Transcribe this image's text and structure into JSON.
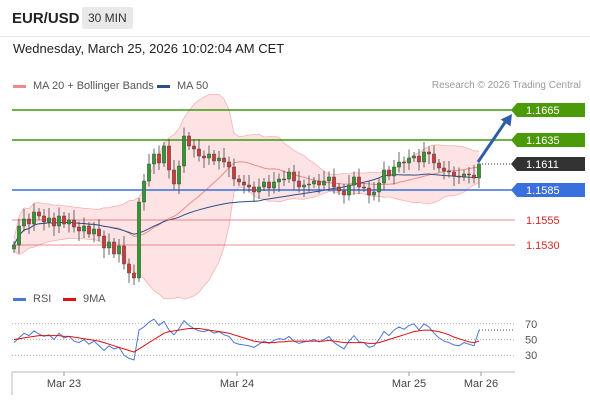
{
  "header": {
    "pair": "EUR/USD",
    "timeframe": "30 MIN"
  },
  "datetime": "Wednesday, March 25, 2026 10:02:04 AM CET",
  "legend": {
    "items": [
      {
        "label": "MA 20 + Bollinger Bands",
        "color": "#f08a8a"
      },
      {
        "label": "MA 50",
        "color": "#2b4f8a"
      }
    ]
  },
  "credit": "Research © 2026 Trading Central",
  "rsi_legend": {
    "items": [
      {
        "label": "RSI",
        "color": "#4a78d8"
      },
      {
        "label": "9MA",
        "color": "#dd1111"
      }
    ]
  },
  "chart_data": {
    "type": "candlestick",
    "instrument": "EUR/USD",
    "timeframe": "30 MIN",
    "x_tick_labels": [
      "Mar 23",
      "Mar 24",
      "Mar 25",
      "Mar 26"
    ],
    "current_price": "1.1611",
    "levels": [
      {
        "value": "1.1665",
        "kind": "resistance",
        "color": "#3d9a0a"
      },
      {
        "value": "1.1635",
        "kind": "resistance",
        "color": "#3d9a0a"
      },
      {
        "value": "1.1585",
        "kind": "pivot",
        "color": "#3a6fe0"
      },
      {
        "value": "1.1555",
        "kind": "support",
        "color": "#e06666"
      },
      {
        "value": "1.1530",
        "kind": "support",
        "color": "#e06666"
      }
    ],
    "price_range": [
      1.149,
      1.168
    ],
    "closes": [
      1.153,
      1.1549,
      1.1556,
      1.1551,
      1.1563,
      1.1559,
      1.1553,
      1.1557,
      1.1549,
      1.1559,
      1.1551,
      1.1555,
      1.1548,
      1.1544,
      1.1549,
      1.1541,
      1.1546,
      1.1539,
      1.1527,
      1.1533,
      1.1521,
      1.1529,
      1.1511,
      1.1502,
      1.1497,
      1.1573,
      1.1594,
      1.1611,
      1.1621,
      1.1612,
      1.1629,
      1.1605,
      1.1591,
      1.1609,
      1.1639,
      1.1629,
      1.1626,
      1.1619,
      1.1617,
      1.1621,
      1.1614,
      1.1617,
      1.1613,
      1.1608,
      1.1596,
      1.1593,
      1.159,
      1.1588,
      1.1583,
      1.1588,
      1.1593,
      1.1587,
      1.1593,
      1.1596,
      1.1596,
      1.1603,
      1.1594,
      1.1588,
      1.159,
      1.1591,
      1.1594,
      1.159,
      1.1594,
      1.1598,
      1.1588,
      1.1584,
      1.158,
      1.159,
      1.1598,
      1.1588,
      1.1587,
      1.158,
      1.1583,
      1.1592,
      1.1605,
      1.1599,
      1.1608,
      1.1613,
      1.1612,
      1.1617,
      1.1619,
      1.1613,
      1.1623,
      1.1621,
      1.1612,
      1.1607,
      1.1604,
      1.1603,
      1.1599,
      1.1598,
      1.1601,
      1.16,
      1.1597,
      1.1611
    ],
    "forecast": {
      "from": "1.1611",
      "to": "1.1665"
    },
    "rsi": {
      "levels": [
        70,
        50,
        30
      ],
      "series": [
        {
          "name": "RSI",
          "color": "#4a78d8",
          "values": [
            46,
            52,
            58,
            55,
            61,
            57,
            54,
            56,
            50,
            58,
            52,
            54,
            48,
            46,
            50,
            44,
            48,
            42,
            36,
            42,
            38,
            40,
            30,
            26,
            24,
            62,
            66,
            72,
            76,
            68,
            73,
            62,
            56,
            64,
            74,
            68,
            64,
            61,
            60,
            62,
            58,
            60,
            56,
            54,
            46,
            44,
            43,
            42,
            40,
            44,
            48,
            45,
            49,
            51,
            50,
            54,
            48,
            45,
            47,
            48,
            50,
            47,
            50,
            54,
            46,
            42,
            38,
            48,
            55,
            47,
            46,
            40,
            42,
            50,
            60,
            55,
            62,
            66,
            63,
            68,
            70,
            62,
            70,
            66,
            58,
            52,
            48,
            46,
            43,
            42,
            46,
            44,
            42,
            62
          ]
        },
        {
          "name": "9MA",
          "color": "#dd1111",
          "values": [
            50,
            51,
            52,
            53,
            54,
            55,
            55,
            55,
            55,
            55,
            54,
            54,
            53,
            52,
            51,
            50,
            49,
            48,
            46,
            44,
            42,
            40,
            38,
            36,
            34,
            38,
            42,
            46,
            50,
            54,
            58,
            60,
            61,
            62,
            63,
            64,
            64,
            64,
            63,
            62,
            61,
            60,
            59,
            58,
            56,
            54,
            52,
            50,
            48,
            47,
            46,
            46,
            46,
            47,
            47,
            48,
            48,
            48,
            48,
            48,
            48,
            48,
            48,
            49,
            48,
            47,
            46,
            46,
            46,
            46,
            46,
            45,
            45,
            46,
            48,
            50,
            52,
            54,
            56,
            58,
            60,
            61,
            62,
            62,
            61,
            60,
            58,
            56,
            53,
            51,
            49,
            47,
            46,
            48
          ]
        }
      ]
    }
  }
}
